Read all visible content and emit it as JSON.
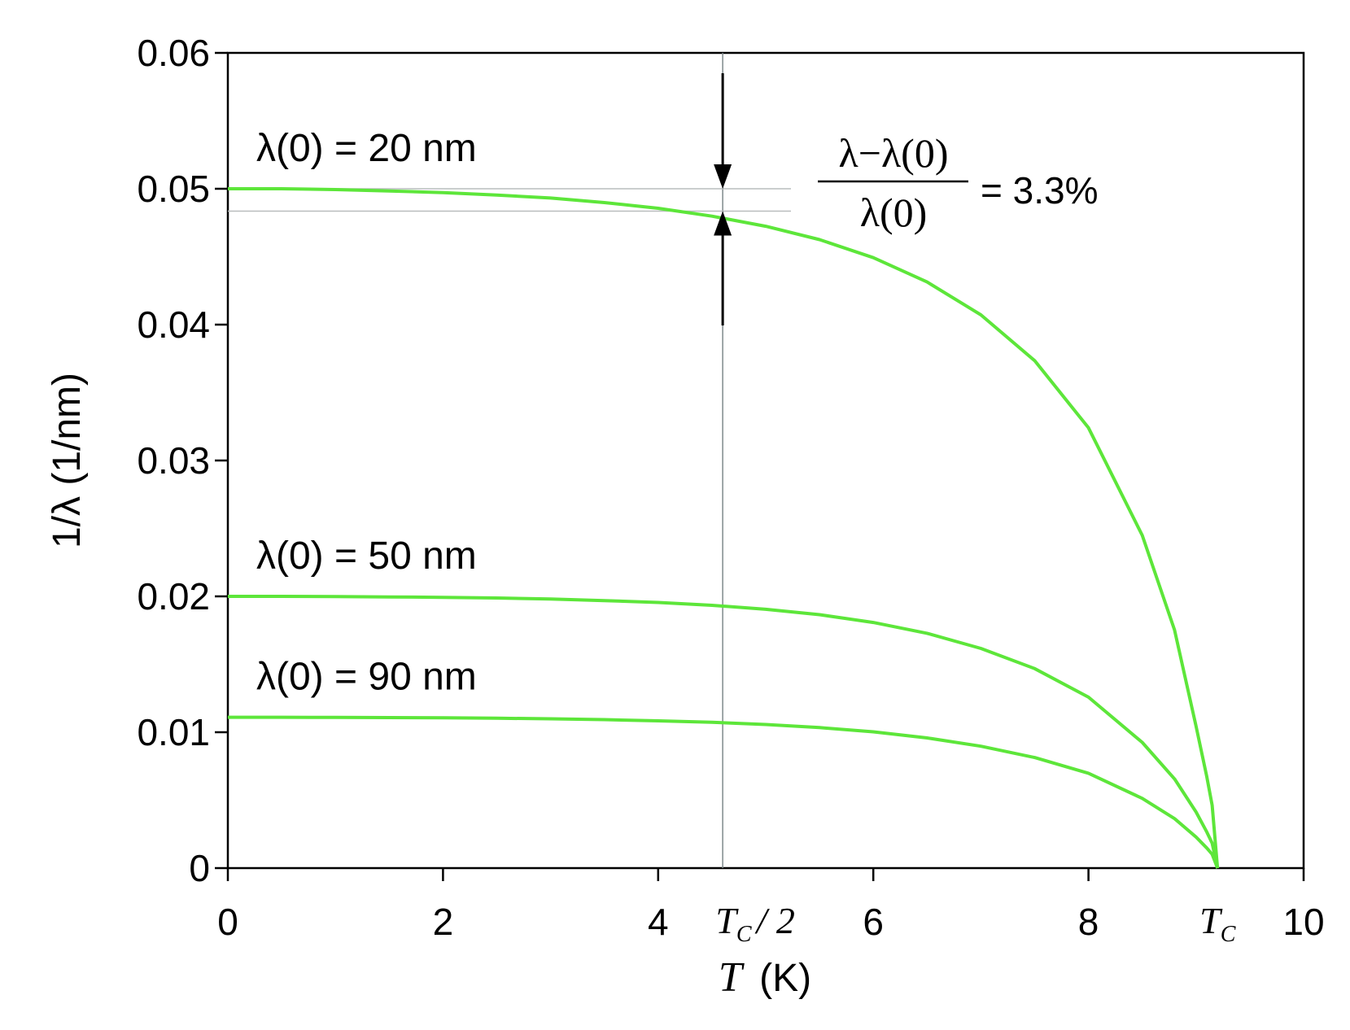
{
  "chart_data": {
    "type": "line",
    "title": "",
    "xlabel_var": "T",
    "xlabel_unit": "(K)",
    "ylabel": "1/λ (1/nm)",
    "xlim": [
      0,
      10
    ],
    "ylim": [
      0,
      0.06
    ],
    "x_ticks": [
      0,
      2,
      4,
      6,
      8,
      10
    ],
    "x_tick_labels": [
      "0",
      "2",
      "4",
      "6",
      "8",
      "10"
    ],
    "y_ticks": [
      0,
      0.01,
      0.02,
      0.03,
      0.04,
      0.05,
      0.06
    ],
    "y_tick_labels": [
      "0",
      "0.01",
      "0.02",
      "0.03",
      "0.04",
      "0.05",
      "0.06"
    ],
    "grid": false,
    "line_color": "#5de63a",
    "tc": 9.2,
    "special_x_labels": [
      {
        "x": 4.6,
        "main": "T",
        "sub": "C",
        "suffix": "/ 2"
      },
      {
        "x": 9.2,
        "main": "T",
        "sub": "C",
        "suffix": ""
      }
    ],
    "series": [
      {
        "label": "λ(0) = 20 nm",
        "x": [
          0,
          0.5,
          1,
          1.5,
          2,
          2.5,
          3,
          3.5,
          4,
          4.5,
          5,
          5.5,
          6,
          6.5,
          7,
          7.5,
          8,
          8.5,
          8.8,
          9.0,
          9.1,
          9.15,
          9.2
        ],
        "y": [
          0.05,
          0.05,
          0.04994,
          0.04984,
          0.04972,
          0.04954,
          0.04932,
          0.04898,
          0.04856,
          0.04798,
          0.04724,
          0.04626,
          0.04493,
          0.04314,
          0.04072,
          0.03735,
          0.03241,
          0.02449,
          0.01752,
          0.01045,
          0.00673,
          0.00463,
          0.0
        ]
      },
      {
        "label": "λ(0) = 50 nm",
        "x": [
          0,
          0.5,
          1,
          1.5,
          2,
          2.5,
          3,
          3.5,
          4,
          4.5,
          5,
          5.5,
          6,
          6.5,
          7,
          7.5,
          8,
          8.5,
          8.8,
          9.0,
          9.1,
          9.15,
          9.2
        ],
        "y": [
          0.02,
          0.02,
          0.01998,
          0.01996,
          0.01993,
          0.01988,
          0.0198,
          0.01969,
          0.01955,
          0.01934,
          0.01905,
          0.01865,
          0.01808,
          0.01728,
          0.01617,
          0.01468,
          0.01258,
          0.00925,
          0.00656,
          0.00413,
          0.00266,
          0.00183,
          0.0
        ]
      },
      {
        "label": "λ(0) = 90 nm",
        "x": [
          0,
          0.5,
          1,
          1.5,
          2,
          2.5,
          3,
          3.5,
          4,
          4.5,
          5,
          5.5,
          6,
          6.5,
          7,
          7.5,
          8,
          8.5,
          8.8,
          9.0,
          9.1,
          9.15,
          9.2
        ],
        "y": [
          0.0111,
          0.0111,
          0.01109,
          0.01108,
          0.01106,
          0.01103,
          0.01099,
          0.01093,
          0.01084,
          0.01073,
          0.01057,
          0.01034,
          0.01003,
          0.00958,
          0.00897,
          0.00814,
          0.00698,
          0.00513,
          0.00364,
          0.00229,
          0.00148,
          0.00102,
          0.0
        ]
      }
    ],
    "annotation": {
      "numerator": "λ−λ(0)",
      "denominator": "λ(0)",
      "equals": "= 3.3%",
      "x": 4.6,
      "y_top": 0.05,
      "y_bottom": 0.04835
    }
  }
}
